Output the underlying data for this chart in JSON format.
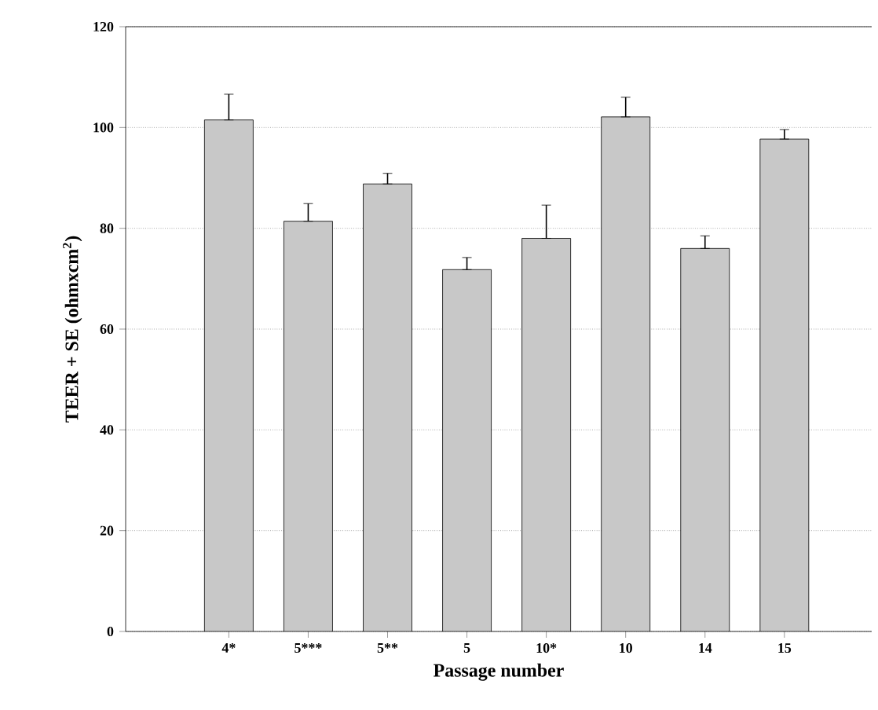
{
  "chart_data": {
    "type": "bar",
    "xlabel": "Passage number",
    "ylabel": "TEER + SE (ohmxcm$^{2}$)",
    "categories": [
      "4*",
      "5***",
      "5**",
      "5",
      "10*",
      "10",
      "14",
      "15"
    ],
    "values": [
      101.5,
      81.4,
      88.8,
      71.8,
      78.0,
      102.1,
      76.0,
      97.7
    ],
    "errors": [
      [
        101.5,
        106.6
      ],
      [
        81.4,
        84.9
      ],
      [
        88.8,
        90.9
      ],
      [
        71.8,
        74.2
      ],
      [
        78.0,
        84.6
      ],
      [
        102.1,
        106.0
      ],
      [
        76.0,
        78.5
      ],
      [
        97.7,
        99.6
      ]
    ],
    "color": "#c8c8c8",
    "ylim": [
      0,
      120
    ],
    "yticks": [
      0,
      20,
      40,
      60,
      80,
      100,
      120
    ],
    "grid": "y"
  }
}
